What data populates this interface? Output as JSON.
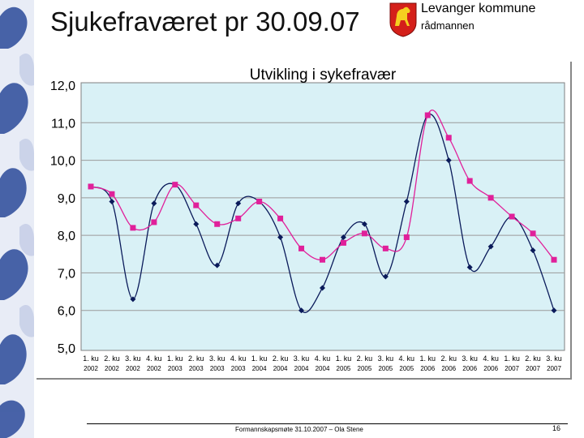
{
  "slide": {
    "title": "Sjukefraværet pr 30.09.07",
    "org_name": "Levanger kommune",
    "org_sub": "rådmannen",
    "footer": "Formannskapsmøte 31.10.2007 – Ola Stene",
    "page_number": "16"
  },
  "colors": {
    "plot_bg": "#d9f1f6",
    "series_1": "#0a1a5a",
    "series_2": "#e0209a",
    "sidebar": "#2b4a9a"
  },
  "chart_data": {
    "type": "line",
    "title": "Utvikling i sykefravær",
    "xlabel": "",
    "ylabel": "",
    "ylim": [
      5.0,
      12.0
    ],
    "yticks": [
      "12,0",
      "11,0",
      "10,0",
      "9,0",
      "8,0",
      "7,0",
      "6,0",
      "5,0"
    ],
    "grid": true,
    "categories": [
      {
        "q": "1. ku",
        "y": "2002"
      },
      {
        "q": "2. ku",
        "y": "2002"
      },
      {
        "q": "3. ku",
        "y": "2002"
      },
      {
        "q": "4. ku",
        "y": "2002"
      },
      {
        "q": "1. ku",
        "y": "2003"
      },
      {
        "q": "2. ku",
        "y": "2003"
      },
      {
        "q": "3. ku",
        "y": "2003"
      },
      {
        "q": "4. ku",
        "y": "2003"
      },
      {
        "q": "1. ku",
        "y": "2004"
      },
      {
        "q": "2. ku",
        "y": "2004"
      },
      {
        "q": "3. ku",
        "y": "2004"
      },
      {
        "q": "4. ku",
        "y": "2004"
      },
      {
        "q": "1. ku",
        "y": "2005"
      },
      {
        "q": "2. ku",
        "y": "2005"
      },
      {
        "q": "3. ku",
        "y": "2005"
      },
      {
        "q": "4. ku",
        "y": "2005"
      },
      {
        "q": "1. ku",
        "y": "2006"
      },
      {
        "q": "2. ku",
        "y": "2006"
      },
      {
        "q": "3. ku",
        "y": "2006"
      },
      {
        "q": "4. ku",
        "y": "2006"
      },
      {
        "q": "1. ku",
        "y": "2007"
      },
      {
        "q": "2. ku",
        "y": "2007"
      },
      {
        "q": "3. ku",
        "y": "2007"
      }
    ],
    "series": [
      {
        "marker": "diamond",
        "color": "#0a1a5a",
        "values": [
          9.3,
          8.9,
          6.3,
          8.85,
          9.35,
          8.3,
          7.2,
          8.85,
          8.9,
          7.95,
          6.0,
          6.6,
          7.95,
          8.3,
          6.9,
          8.9,
          11.2,
          10.0,
          7.15,
          7.7,
          8.5,
          7.6,
          6.0
        ]
      },
      {
        "marker": "square",
        "color": "#e0209a",
        "values": [
          9.3,
          9.1,
          8.2,
          8.35,
          9.35,
          8.8,
          8.3,
          8.45,
          8.9,
          8.45,
          7.65,
          7.35,
          7.8,
          8.05,
          7.65,
          7.95,
          11.2,
          10.6,
          9.45,
          9.0,
          8.5,
          8.05,
          7.35
        ]
      }
    ]
  }
}
